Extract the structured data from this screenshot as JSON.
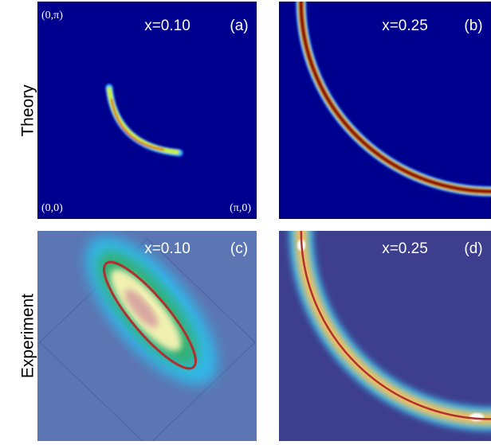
{
  "row_labels": [
    "Theory",
    "Experiment"
  ],
  "panels": [
    {
      "doping": "x=0.10",
      "tag": "(a)",
      "corners": [
        "(0,π)",
        "(0,0)",
        "(π,0)"
      ]
    },
    {
      "doping": "x=0.25",
      "tag": "(b)"
    },
    {
      "doping": "x=0.10",
      "tag": "(c)"
    },
    {
      "doping": "x=0.25",
      "tag": "(d)"
    }
  ]
}
